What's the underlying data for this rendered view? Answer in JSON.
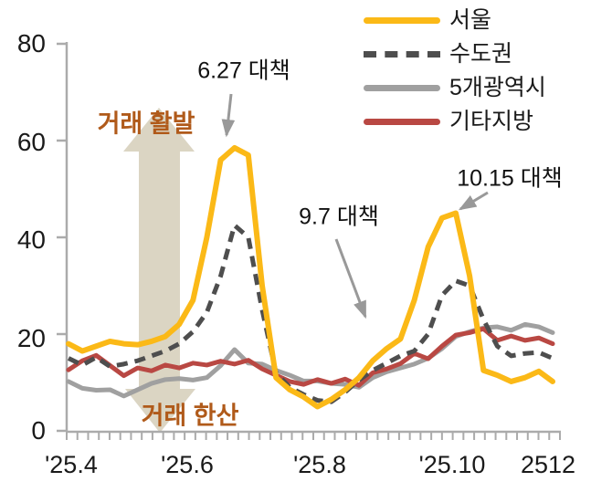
{
  "chart_data": {
    "type": "line",
    "title": "",
    "x_unit": "weekly, Apr 2025 - Dec 2025",
    "x_tick_labels": [
      "'25.4",
      "'25.6",
      "'25.8",
      "'25.10",
      "2512"
    ],
    "x_label_indices": [
      0,
      9,
      18,
      27,
      35
    ],
    "y_ticks": [
      0,
      20,
      40,
      60,
      80
    ],
    "ylim": [
      0,
      80
    ],
    "grid": false,
    "legend_position": "top-right",
    "series": [
      {
        "name": "서울",
        "key": "seoul",
        "color": "#FBB917",
        "style": "solid",
        "values": [
          18,
          16.5,
          17.5,
          18.5,
          18,
          17.8,
          18.5,
          19.5,
          22,
          27,
          40,
          56,
          58.5,
          57,
          30,
          11,
          8.5,
          7,
          5,
          6.5,
          8.5,
          11,
          14.5,
          17,
          19,
          27,
          38,
          44,
          45,
          32,
          12.5,
          11.5,
          10.2,
          11,
          12.3,
          10.2
        ]
      },
      {
        "name": "수도권",
        "key": "sudogwon",
        "color": "#4E4E4E",
        "style": "dashed",
        "values": [
          15,
          13.6,
          15.2,
          13.3,
          13.8,
          14.5,
          15.5,
          16.5,
          18,
          20.5,
          24.5,
          32,
          42.5,
          40,
          25,
          12,
          9,
          7.5,
          6.3,
          6,
          8,
          10.5,
          12.5,
          14,
          15.5,
          16.5,
          20,
          28,
          31,
          30,
          23,
          17.5,
          15.5,
          16,
          16.2,
          15
        ]
      },
      {
        "name": "5개광역시",
        "key": "five-metro",
        "color": "#A0A0A0",
        "style": "solid",
        "values": [
          10.2,
          8.8,
          8.4,
          8.5,
          7.2,
          8.5,
          9.8,
          10.6,
          10.8,
          10.5,
          11,
          13.5,
          16.8,
          14,
          13.8,
          12.5,
          11.5,
          10.3,
          10.3,
          9.8,
          9.6,
          9,
          11,
          12.2,
          13,
          13.8,
          15,
          17,
          19.5,
          20.5,
          21.3,
          21.5,
          20.8,
          22,
          21.5,
          20.3
        ]
      },
      {
        "name": "기타지방",
        "key": "other-regions",
        "color": "#B94843",
        "style": "solid",
        "values": [
          12.6,
          14.5,
          15.6,
          13.5,
          11.4,
          13,
          12.4,
          13.6,
          13,
          14,
          13.6,
          14.4,
          13.8,
          14.6,
          12.8,
          11.5,
          10.2,
          9.6,
          10.6,
          9.8,
          10.7,
          9.4,
          12,
          12.8,
          13.9,
          16,
          14.9,
          17.5,
          19.8,
          20.3,
          21.1,
          18.7,
          19.6,
          18.7,
          19.2,
          18
        ]
      }
    ],
    "annotations": [
      {
        "label": "6.27 대책"
      },
      {
        "label": "9.7 대책"
      },
      {
        "label": "10.15 대책"
      }
    ],
    "zone_labels": {
      "active": "거래 활발",
      "quiet": "거래 한산"
    }
  },
  "colors": {
    "seoul": "#FBB917",
    "sudogwon": "#4E4E4E",
    "five_metro": "#A0A0A0",
    "other_regions": "#B94843",
    "zone_text": "#B05A1A",
    "zone_arrow_fill": "#DBD5C3",
    "annotation_arrow": "#999999",
    "axis": "#ABABAB",
    "tick_label": "#1A1A1A"
  }
}
